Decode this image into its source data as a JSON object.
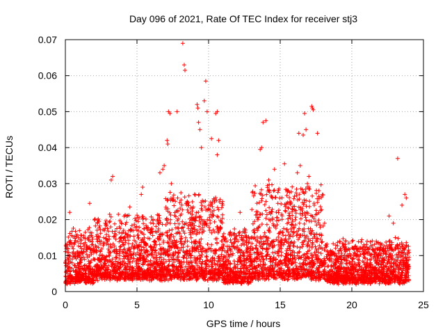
{
  "chart_data": {
    "type": "scatter",
    "title": "Day 096 of 2021, Rate Of TEC Index for receiver stj3",
    "xlabel": "GPS time / hours",
    "ylabel": "ROTI / TECUs",
    "xlim": [
      0,
      25
    ],
    "ylim": [
      0,
      0.07
    ],
    "x_ticks": [
      "0",
      "5",
      "10",
      "15",
      "20",
      "25"
    ],
    "y_ticks": [
      "0",
      "0.01",
      "0.02",
      "0.03",
      "0.04",
      "0.05",
      "0.06",
      "0.07"
    ],
    "grid": true,
    "marker": "+",
    "color": "#ff0000",
    "series": [
      {
        "name": "ROTI",
        "points": [
          [
            8.2,
            0.069
          ],
          [
            8.3,
            0.063
          ],
          [
            8.35,
            0.0615
          ],
          [
            9.8,
            0.0585
          ],
          [
            9.2,
            0.052
          ],
          [
            9.25,
            0.051
          ],
          [
            9.7,
            0.053
          ],
          [
            9.9,
            0.05
          ],
          [
            10.5,
            0.0495
          ],
          [
            10.6,
            0.05
          ],
          [
            7.2,
            0.05
          ],
          [
            7.3,
            0.0495
          ],
          [
            7.8,
            0.05
          ],
          [
            17.2,
            0.0515
          ],
          [
            17.3,
            0.0505
          ],
          [
            17.25,
            0.051
          ],
          [
            16.7,
            0.0495
          ],
          [
            16.8,
            0.045
          ],
          [
            13.8,
            0.047
          ],
          [
            14.0,
            0.0475
          ],
          [
            23.2,
            0.037
          ],
          [
            13.6,
            0.0395
          ],
          [
            13.7,
            0.04
          ],
          [
            16.3,
            0.044
          ],
          [
            16.6,
            0.0435
          ],
          [
            17.6,
            0.044
          ],
          [
            0.3,
            0.022
          ],
          [
            1.7,
            0.0245
          ],
          [
            3.3,
            0.032
          ],
          [
            3.2,
            0.031
          ],
          [
            4.5,
            0.0235
          ],
          [
            10.7,
            0.042
          ],
          [
            10.6,
            0.038
          ],
          [
            10.2,
            0.0425
          ],
          [
            9.4,
            0.045
          ],
          [
            9.3,
            0.047
          ],
          [
            9.5,
            0.04
          ],
          [
            7.1,
            0.042
          ],
          [
            7.15,
            0.041
          ],
          [
            6.6,
            0.033
          ],
          [
            6.8,
            0.034
          ],
          [
            6.9,
            0.035
          ],
          [
            7.4,
            0.03
          ],
          [
            15.3,
            0.0355
          ],
          [
            14.6,
            0.034
          ],
          [
            14.2,
            0.031
          ],
          [
            16.2,
            0.033
          ],
          [
            16.4,
            0.035
          ],
          [
            16.9,
            0.03
          ],
          [
            17.0,
            0.032
          ],
          [
            5.4,
            0.029
          ],
          [
            5.3,
            0.027
          ],
          [
            23.7,
            0.027
          ],
          [
            23.8,
            0.026
          ],
          [
            23.5,
            0.024
          ],
          [
            22.9,
            0.019
          ],
          [
            22.6,
            0.021
          ],
          [
            8.6,
            0.024
          ],
          [
            12.2,
            0.022
          ],
          [
            18.1,
            0.019
          ]
        ]
      }
    ],
    "noise_bands": [
      {
        "x_range": [
          0,
          2
        ],
        "y_range": [
          0.002,
          0.016
        ]
      },
      {
        "x_range": [
          2,
          7
        ],
        "y_range": [
          0.003,
          0.02
        ]
      },
      {
        "x_range": [
          7,
          11
        ],
        "y_range": [
          0.003,
          0.026
        ]
      },
      {
        "x_range": [
          11,
          13
        ],
        "y_range": [
          0.002,
          0.016
        ]
      },
      {
        "x_range": [
          13,
          18
        ],
        "y_range": [
          0.003,
          0.028
        ]
      },
      {
        "x_range": [
          18,
          24
        ],
        "y_range": [
          0.002,
          0.013
        ]
      }
    ]
  }
}
